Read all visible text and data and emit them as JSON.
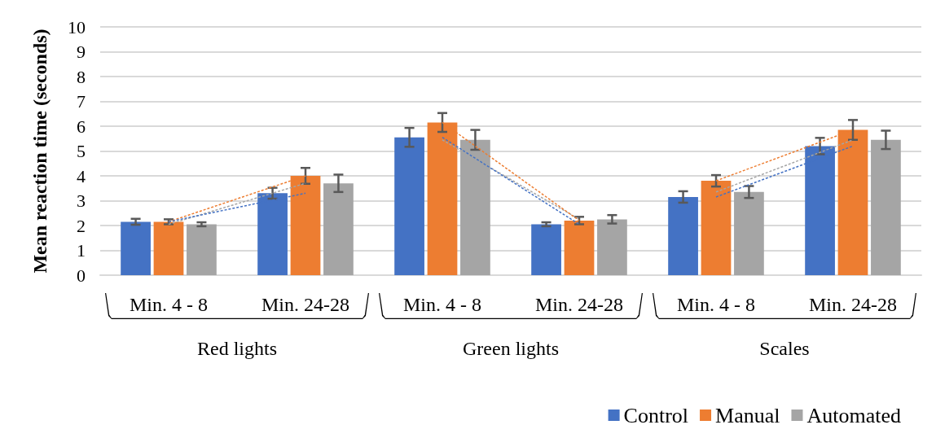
{
  "chart_data": {
    "type": "bar",
    "ylabel": "Mean reaction time (seconds)",
    "categories": [
      "Min. 4 - 8",
      "Min. 24-28",
      "Min. 4 - 8",
      "Min. 24-28",
      "Min. 4 - 8",
      "Min. 24-28"
    ],
    "annotations": [
      "Red lights",
      "Green lights",
      "Scales"
    ],
    "ylim": [
      0,
      10
    ],
    "yticks": [
      0,
      1,
      2,
      3,
      4,
      5,
      6,
      7,
      8,
      9,
      10
    ],
    "grid": "y",
    "legend": "bottom right",
    "series": [
      {
        "name": "Control",
        "color": "#4472c4",
        "values": [
          2.15,
          3.3,
          5.55,
          2.05,
          3.15,
          5.2
        ],
        "errors": [
          0.12,
          0.22,
          0.38,
          0.08,
          0.23,
          0.33
        ]
      },
      {
        "name": "Manual",
        "color": "#ed7d31",
        "values": [
          2.15,
          4.0,
          6.15,
          2.2,
          3.8,
          5.85
        ],
        "errors": [
          0.1,
          0.32,
          0.38,
          0.15,
          0.23,
          0.4
        ]
      },
      {
        "name": "Automated",
        "color": "#a5a5a5",
        "values": [
          2.05,
          3.7,
          5.45,
          2.25,
          3.35,
          5.45
        ],
        "errors": [
          0.08,
          0.35,
          0.4,
          0.17,
          0.24,
          0.37
        ]
      },
      {
        "type": "line",
        "color": "#4472c4",
        "line_style": "dashed",
        "marker": "none",
        "values": [
          2.15,
          3.3,
          null,
          null,
          null,
          null
        ]
      },
      {
        "type": "line",
        "color": "#4472c4",
        "line_style": "dashed",
        "marker": "none",
        "values": [
          null,
          null,
          5.55,
          2.05,
          null,
          null
        ]
      },
      {
        "type": "line",
        "color": "#4472c4",
        "line_style": "dashed",
        "marker": "none",
        "values": [
          null,
          null,
          null,
          null,
          3.15,
          5.2
        ]
      },
      {
        "type": "line",
        "color": "#ed7d31",
        "line_style": "dashed",
        "marker": "none",
        "values": [
          2.15,
          4.0,
          null,
          null,
          null,
          null
        ]
      },
      {
        "type": "line",
        "color": "#ed7d31",
        "line_style": "dashed",
        "marker": "none",
        "values": [
          null,
          null,
          6.15,
          2.2,
          null,
          null
        ]
      },
      {
        "type": "line",
        "color": "#ed7d31",
        "line_style": "dashed",
        "marker": "none",
        "values": [
          null,
          null,
          null,
          null,
          3.8,
          5.85
        ]
      },
      {
        "type": "line",
        "color": "#a5a5a5",
        "line_style": "dashed",
        "marker": "none",
        "values": [
          2.05,
          3.7,
          null,
          null,
          null,
          null
        ]
      },
      {
        "type": "line",
        "color": "#a5a5a5",
        "line_style": "dashed",
        "marker": "none",
        "values": [
          null,
          null,
          5.45,
          2.25,
          null,
          null
        ]
      },
      {
        "type": "line",
        "color": "#a5a5a5",
        "line_style": "dashed",
        "marker": "none",
        "values": [
          null,
          null,
          null,
          null,
          3.35,
          5.45
        ]
      }
    ]
  }
}
